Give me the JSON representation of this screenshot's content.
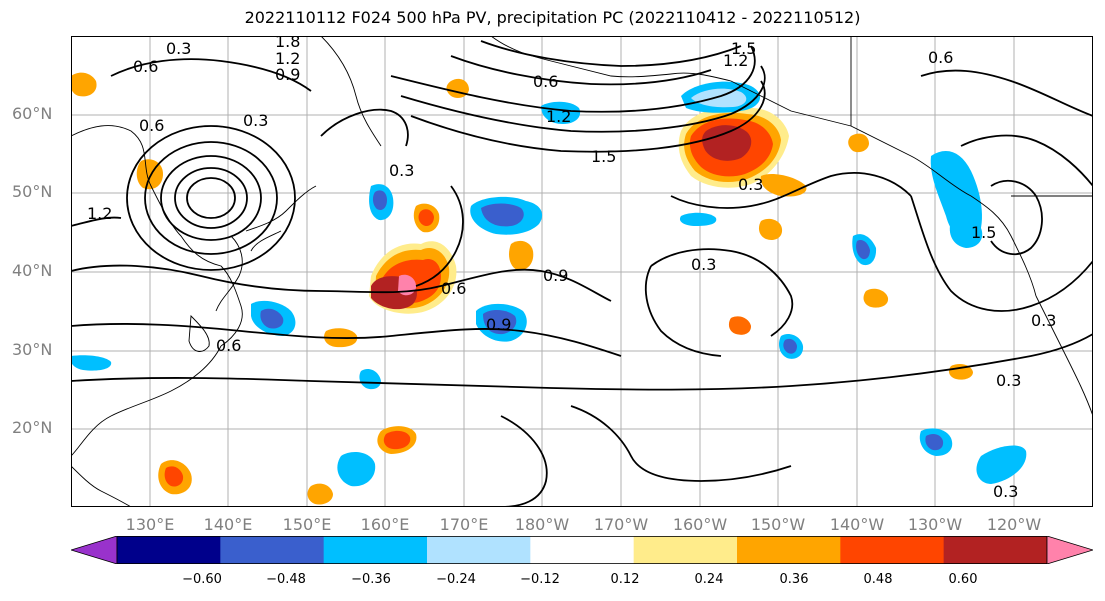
{
  "title": "2022110112 F024 500 hPa PV, precipitation PC (2022110412 - 2022110512)",
  "lat_labels": [
    "60°N",
    "50°N",
    "40°N",
    "30°N",
    "20°N"
  ],
  "lon_labels": [
    "130°E",
    "140°E",
    "150°E",
    "160°E",
    "170°E",
    "180°W",
    "170°W",
    "160°W",
    "150°W",
    "140°W",
    "130°W",
    "120°W"
  ],
  "contour_labels": [
    "0.3",
    "0.6",
    "0.9",
    "1.2",
    "1.5",
    "1.8"
  ],
  "colorbar": {
    "ticks": [
      "−0.60",
      "−0.48",
      "−0.36",
      "−0.24",
      "−0.12",
      "0.12",
      "0.24",
      "0.36",
      "0.48",
      "0.60"
    ],
    "colors": [
      "#9932CC",
      "#00008B",
      "#3A5FCD",
      "#00BFFF",
      "#B0E2FF",
      "#FFFFFF",
      "#FFEC8B",
      "#FFA500",
      "#FF4500",
      "#B22222",
      "#FF82AB"
    ]
  }
}
